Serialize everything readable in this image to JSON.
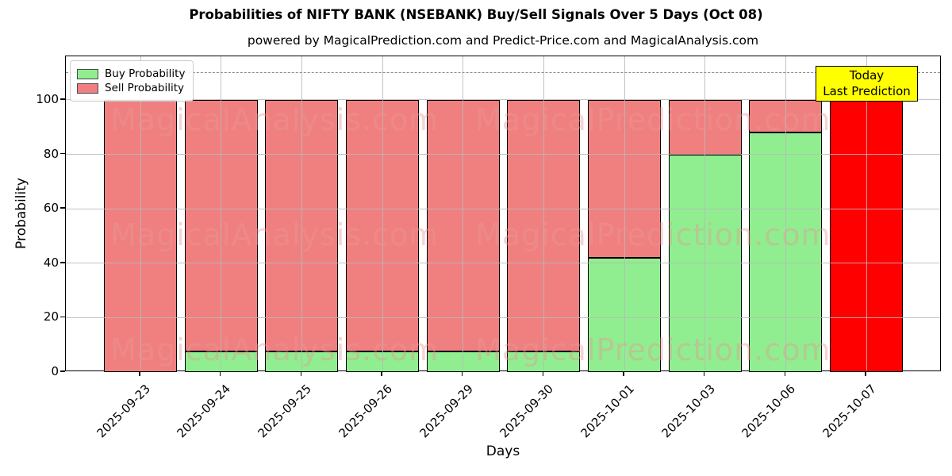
{
  "chart_data": {
    "type": "bar",
    "stacked": true,
    "title": "Probabilities of NIFTY BANK (NSEBANK) Buy/Sell Signals Over 5 Days (Oct 08)",
    "subtitle": "powered by MagicalPrediction.com and Predict-Price.com and MagicalAnalysis.com",
    "xlabel": "Days",
    "ylabel": "Probability",
    "ylim": [
      0,
      116
    ],
    "yticks": [
      0,
      20,
      40,
      60,
      80,
      100
    ],
    "grid": true,
    "grid_above_bars": true,
    "dashed_guide_y": 110,
    "categories": [
      "2025-09-23",
      "2025-09-24",
      "2025-09-25",
      "2025-09-26",
      "2025-09-29",
      "2025-09-30",
      "2025-10-01",
      "2025-10-03",
      "2025-10-06",
      "2025-10-07"
    ],
    "series": [
      {
        "name": "Buy Probability",
        "color": "#90ee90",
        "values": [
          0,
          7.5,
          7.5,
          7.5,
          7.5,
          7.5,
          42,
          80,
          88,
          0
        ]
      },
      {
        "name": "Sell Probability",
        "color": "#f08080",
        "values": [
          100,
          92.5,
          92.5,
          92.5,
          92.5,
          92.5,
          58,
          20,
          12,
          100
        ]
      }
    ],
    "today_bar": {
      "category": "2025-10-07",
      "index": 9,
      "sell_color": "#ff0000"
    },
    "legend": {
      "position": "upper-left",
      "entries": [
        {
          "label": "Buy Probability",
          "color": "#90ee90"
        },
        {
          "label": "Sell Probability",
          "color": "#f08080"
        }
      ]
    },
    "annotation": {
      "text_lines": [
        "Today",
        "Last Prediction"
      ],
      "bg_color": "#ffff00",
      "border_color": "#000000"
    },
    "watermarks": {
      "left_text": "MagicalAnalysis.com",
      "right_text": "MagicalPrediction.com",
      "rows": 3
    },
    "colors": {
      "buy": "#90ee90",
      "sell": "#f08080",
      "today_sell": "#ff0000",
      "annotation_bg": "#ffff00",
      "grid": "#b9b9b9"
    }
  }
}
